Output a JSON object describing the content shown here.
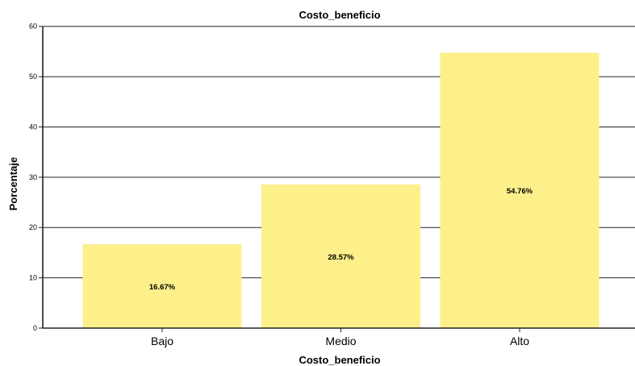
{
  "chart_data": {
    "type": "bar",
    "title": "Costo_beneficio",
    "xlabel": "Costo_beneficio",
    "ylabel": "Porcentaje",
    "categories": [
      "Bajo",
      "Medio",
      "Alto"
    ],
    "values": [
      16.67,
      28.57,
      54.76
    ],
    "data_labels": [
      "16.67%",
      "28.57%",
      "54.76%"
    ],
    "ylim": [
      0,
      63
    ],
    "yticks": [
      0,
      10,
      20,
      30,
      40,
      50,
      60
    ],
    "grid": true,
    "bar_color": "#fdf08a"
  }
}
